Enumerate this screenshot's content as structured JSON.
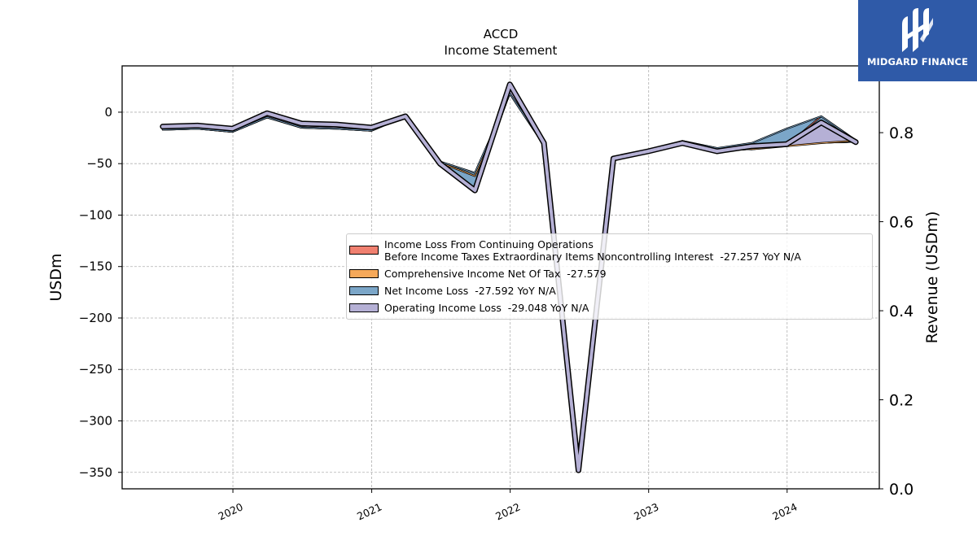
{
  "logo": {
    "text": "MIDGARD FINANCE",
    "icon": "midgard-logo-icon"
  },
  "chart_data": {
    "type": "area",
    "title": "ACCD",
    "subtitle": "Income Statement",
    "ylabel": "USDm",
    "ylabel_right": "Revenue (USDm)",
    "ylim": [
      -366,
      45
    ],
    "ylim_right": [
      0.0,
      0.95
    ],
    "y_ticks": [
      0,
      -50,
      -100,
      -150,
      -200,
      -250,
      -300,
      -350
    ],
    "y_tick_labels": [
      "0",
      "−50",
      "−100",
      "−150",
      "−200",
      "−250",
      "−300",
      "−350"
    ],
    "y_right_ticks": [
      0.0,
      0.2,
      0.4,
      0.6,
      0.8
    ],
    "y_right_tick_labels": [
      "0.0",
      "0.2",
      "0.4",
      "0.6",
      "0.8"
    ],
    "xlim": [
      "2019-03-15",
      "2024-08-31"
    ],
    "x_ticks": [
      "2020-01-01",
      "2021-01-01",
      "2022-01-01",
      "2023-01-01",
      "2024-01-01"
    ],
    "x_tick_labels": [
      "2020",
      "2021",
      "2022",
      "2023",
      "2024"
    ],
    "grid": true,
    "legend_position": "center-right",
    "x": [
      "2019-06-30",
      "2019-09-30",
      "2019-12-31",
      "2020-03-31",
      "2020-06-30",
      "2020-09-30",
      "2020-12-31",
      "2021-03-31",
      "2021-06-30",
      "2021-09-30",
      "2021-12-31",
      "2022-03-31",
      "2022-06-30",
      "2022-09-30",
      "2022-12-31",
      "2023-03-31",
      "2023-06-30",
      "2023-09-30",
      "2023-12-31",
      "2024-03-31",
      "2024-06-30"
    ],
    "series": [
      {
        "name": "Income Loss From Continuing Operations\nBefore Income Taxes Extraordinary Items Noncontrolling Interest  -27.257 YoY N/A",
        "color": "#f08070",
        "values": [
          -17,
          -16,
          -19,
          -5,
          -15,
          -16,
          -18,
          -4,
          -49,
          -62,
          18,
          -32,
          -346,
          -47,
          -37,
          -28,
          -35,
          -36,
          -32,
          -4,
          -27.257
        ]
      },
      {
        "name": "Comprehensive Income Net Of Tax  -27.579",
        "color": "#f6a95a",
        "values": [
          -17,
          -16,
          -19,
          -5,
          -15,
          -16,
          -18,
          -4,
          -49,
          -62,
          18,
          -32,
          -346,
          -47,
          -37,
          -28,
          -35,
          -36,
          -33,
          -30,
          -27.579
        ]
      },
      {
        "name": "Net Income Loss  -27.592 YoY N/A",
        "color": "#7ba6c8",
        "values": [
          -17,
          -16,
          -19,
          -5,
          -15,
          -16,
          -18,
          -4,
          -48,
          -59,
          18,
          -32,
          -346,
          -46,
          -37,
          -28,
          -35,
          -30,
          -16,
          -4,
          -27.592
        ]
      },
      {
        "name": "Operating Income Loss  -29.048 YoY N/A",
        "color": "#b5b0d5",
        "values": [
          -14,
          -13,
          -16,
          -1,
          -11,
          -12,
          -15,
          -4,
          -50,
          -76,
          27,
          -30,
          -348,
          -45,
          -38,
          -30,
          -38,
          -33,
          -31,
          -10,
          -29.048
        ]
      }
    ]
  }
}
